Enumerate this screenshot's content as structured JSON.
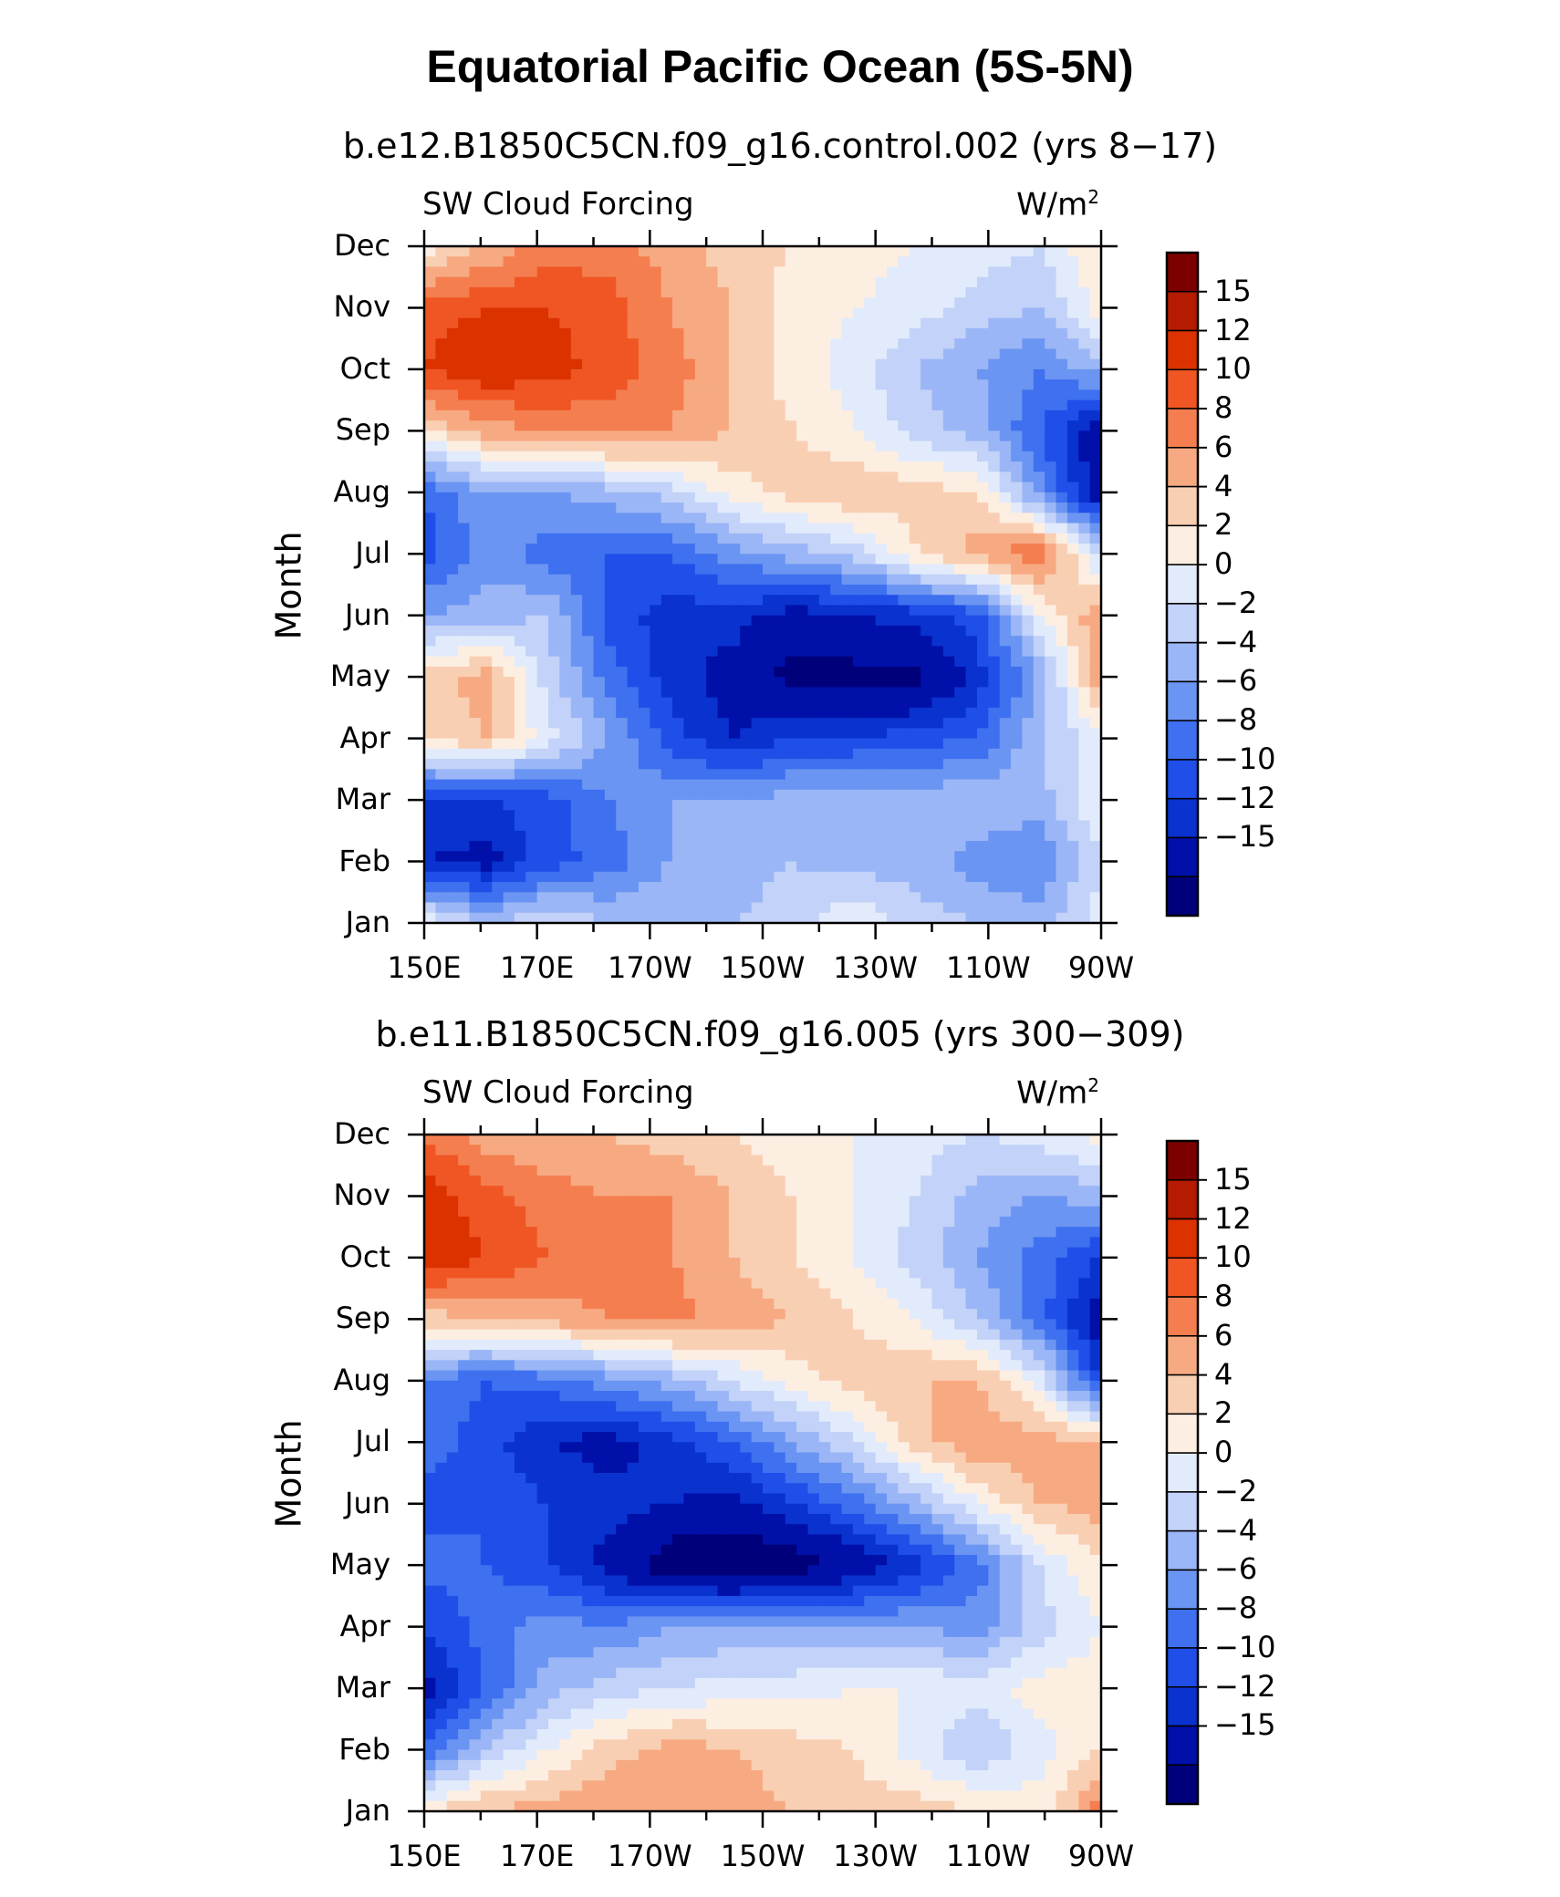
{
  "title": "Equatorial Pacific Ocean (5S-5N)",
  "colors": {
    "levels": [
      "#00007a",
      "#0010a8",
      "#0a32cf",
      "#1f4fe8",
      "#3e70ef",
      "#6b95f2",
      "#9bb6f6",
      "#c2d2f8",
      "#e2ebfb",
      "#fdeee2",
      "#f9cfb3",
      "#f7aa82",
      "#f47e4f",
      "#ef5624",
      "#dc3200",
      "#b41b00",
      "#7c0000"
    ]
  },
  "chart_data": [
    {
      "type": "heatmap",
      "subtitle": "b.e12.B1850C5CN.f09_g16.control.002 (yrs 8−17)",
      "left_label": "SW Cloud Forcing",
      "right_label": "W/m",
      "right_label_sup": "2",
      "ylabel": "Month",
      "x_ticks": [
        "150E",
        "170E",
        "170W",
        "150W",
        "130W",
        "110W",
        "90W"
      ],
      "x_tick_values": [
        150,
        170,
        190,
        210,
        230,
        250,
        270
      ],
      "y_ticks": [
        "Jan",
        "Feb",
        "Mar",
        "Apr",
        "May",
        "Jun",
        "Jul",
        "Aug",
        "Sep",
        "Oct",
        "Nov",
        "Dec"
      ],
      "x_range": [
        150,
        270
      ],
      "y_range": [
        1,
        12
      ],
      "colorbar_labels": [
        "15",
        "12",
        "10",
        "8",
        "6",
        "4",
        "2",
        "0",
        "−2",
        "−4",
        "−6",
        "−8",
        "−10",
        "−12",
        "−15"
      ],
      "levels": [
        -15,
        -12,
        -10,
        -8,
        -6,
        -4,
        -2,
        0,
        2,
        4,
        6,
        8,
        10,
        12,
        15
      ],
      "field": [
        [
          2,
          -2,
          0,
          -2,
          -2,
          -2,
          -1,
          2,
          -1,
          -2,
          -3,
          1
        ],
        [
          -12,
          -13,
          -9,
          -7,
          -4,
          -3,
          -2,
          -3,
          -3,
          -5,
          -6,
          0
        ],
        [
          -10,
          -10,
          -9,
          -6,
          -4,
          -4,
          -3,
          -2,
          -3,
          -2,
          -3,
          2
        ],
        [
          4,
          6,
          1,
          -4,
          -9,
          -12,
          -10,
          -10,
          -9,
          -8,
          -2,
          1
        ],
        [
          5,
          7,
          -1,
          -7,
          -11,
          -13,
          -16,
          -16,
          -16,
          -11,
          -4,
          8
        ],
        [
          -4,
          -3,
          -2,
          -9,
          -11,
          -11,
          -13,
          -12,
          -11,
          -9,
          2,
          8
        ],
        [
          -9,
          -5,
          -7,
          -8,
          -8,
          -5,
          -3,
          -1,
          4,
          7,
          10,
          -1
        ],
        [
          -8,
          -4,
          -4,
          -3,
          -1,
          3,
          5,
          6,
          5,
          4,
          -5,
          -14
        ],
        [
          4,
          7,
          8,
          9,
          8,
          6,
          4,
          2,
          -1,
          -3,
          -8,
          -14
        ],
        [
          12,
          14,
          13,
          11,
          9,
          6,
          3,
          1,
          -2,
          -4,
          -6,
          -3
        ],
        [
          11,
          12,
          12,
          11,
          8,
          6,
          3,
          2,
          1,
          -1,
          -2,
          3
        ],
        [
          3,
          6,
          9,
          9,
          7,
          5,
          4,
          3,
          2,
          1,
          0,
          4
        ]
      ]
    },
    {
      "type": "heatmap",
      "subtitle": "b.e11.B1850C5CN.f09_g16.005 (yrs 300−309)",
      "left_label": "SW Cloud Forcing",
      "right_label": "W/m",
      "right_label_sup": "2",
      "ylabel": "Month",
      "x_ticks": [
        "150E",
        "170E",
        "170W",
        "150W",
        "130W",
        "110W",
        "90W"
      ],
      "x_tick_values": [
        150,
        170,
        190,
        210,
        230,
        250,
        270
      ],
      "y_ticks": [
        "Jan",
        "Feb",
        "Mar",
        "Apr",
        "May",
        "Jun",
        "Jul",
        "Aug",
        "Sep",
        "Oct",
        "Nov",
        "Dec"
      ],
      "x_range": [
        150,
        270
      ],
      "y_range": [
        1,
        12
      ],
      "colorbar_labels": [
        "15",
        "12",
        "10",
        "8",
        "6",
        "4",
        "2",
        "0",
        "−2",
        "−4",
        "−6",
        "−8",
        "−10",
        "−12",
        "−15"
      ],
      "levels": [
        -15,
        -12,
        -10,
        -8,
        -6,
        -4,
        -2,
        0,
        2,
        4,
        6,
        8,
        10,
        12,
        15
      ],
      "field": [
        [
          4,
          6,
          7,
          8,
          8,
          7,
          6,
          5,
          5,
          4,
          3,
          9
        ],
        [
          -8,
          -2,
          2,
          5,
          7,
          6,
          5,
          4,
          1,
          -2,
          1,
          4
        ],
        [
          -13,
          -8,
          -3,
          -1,
          0,
          1,
          1,
          2,
          2,
          1,
          3,
          3
        ],
        [
          -10,
          -7,
          -5,
          -6,
          -4,
          -4,
          -3,
          -4,
          -4,
          -5,
          -1,
          2
        ],
        [
          -7,
          -8,
          -10,
          -13,
          -17,
          -18,
          -17,
          -14,
          -11,
          -7,
          0,
          4
        ],
        [
          -9,
          -8,
          -10,
          -11,
          -12,
          -13,
          -10,
          -7,
          -3,
          2,
          6,
          7
        ],
        [
          -7,
          -9,
          -12,
          -13,
          -11,
          -8,
          -4,
          0,
          5,
          8,
          7,
          6
        ],
        [
          -6,
          -8,
          -7,
          -5,
          -3,
          0,
          3,
          5,
          6,
          6,
          1,
          -10
        ],
        [
          5,
          6,
          7,
          8,
          9,
          7,
          6,
          4,
          2,
          -2,
          -7,
          -14
        ],
        [
          14,
          12,
          10,
          9,
          8,
          6,
          4,
          2,
          -1,
          -4,
          -7,
          -10
        ],
        [
          13,
          11,
          9,
          8,
          8,
          6,
          4,
          2,
          0,
          -3,
          -4,
          -3
        ],
        [
          10,
          7,
          6,
          6,
          5,
          4,
          3,
          2,
          1,
          0,
          1,
          3
        ]
      ]
    }
  ]
}
